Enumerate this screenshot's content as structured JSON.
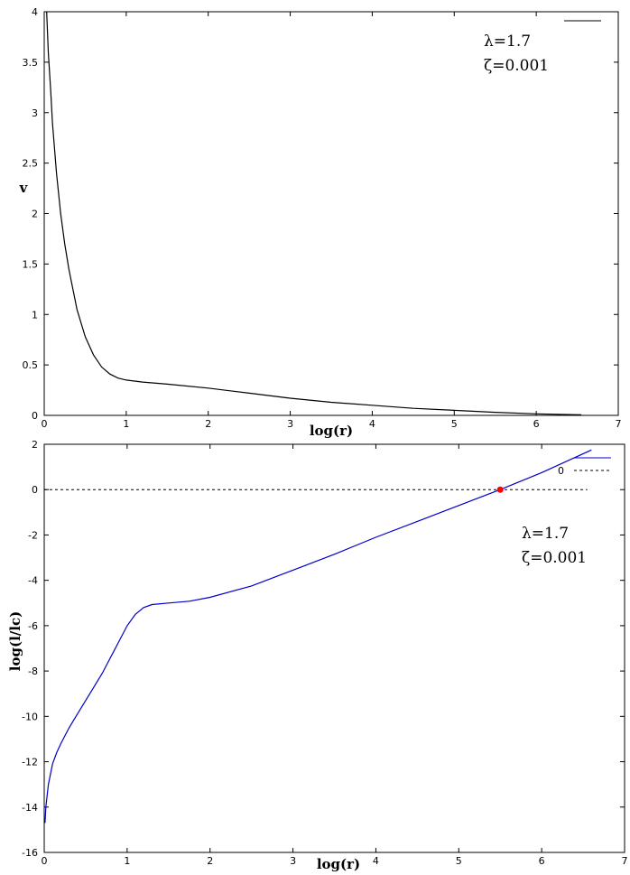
{
  "chart_data": [
    {
      "type": "line",
      "xlabel": "log(r)",
      "ylabel": "v",
      "xlim": [
        0,
        7
      ],
      "ylim": [
        0,
        4
      ],
      "xticks": [
        "0",
        "1",
        "2",
        "3",
        "4",
        "5",
        "6",
        "7"
      ],
      "yticks": [
        "0",
        "0.5",
        "1",
        "1.5",
        "2",
        "2.5",
        "3",
        "3.5",
        "4"
      ],
      "annotations": [
        "λ=1.7",
        "ζ=0.001"
      ],
      "grid": false,
      "legend_position": "top-right",
      "series": [
        {
          "color": "#000000",
          "x": [
            0.03,
            0.05,
            0.08,
            0.1,
            0.15,
            0.2,
            0.25,
            0.3,
            0.4,
            0.5,
            0.6,
            0.7,
            0.8,
            0.9,
            1.0,
            1.2,
            1.5,
            2.0,
            2.5,
            3.0,
            3.5,
            4.0,
            4.5,
            5.0,
            5.5,
            6.0,
            6.55
          ],
          "y": [
            4.0,
            3.6,
            3.2,
            2.9,
            2.4,
            2.0,
            1.7,
            1.45,
            1.05,
            0.78,
            0.6,
            0.48,
            0.41,
            0.37,
            0.35,
            0.33,
            0.31,
            0.27,
            0.22,
            0.17,
            0.13,
            0.1,
            0.07,
            0.05,
            0.03,
            0.015,
            0.005
          ]
        }
      ]
    },
    {
      "type": "line",
      "xlabel": "log(r)",
      "ylabel": "log(l/lc)",
      "xlim": [
        0,
        7
      ],
      "ylim": [
        -16,
        2
      ],
      "xticks": [
        "0",
        "1",
        "2",
        "3",
        "4",
        "5",
        "6",
        "7"
      ],
      "yticks": [
        "-16",
        "-14",
        "-12",
        "-10",
        "-8",
        "-6",
        "-4",
        "-2",
        "0",
        "2"
      ],
      "annotations": [
        "λ=1.7",
        "ζ=0.001"
      ],
      "grid": false,
      "legend_position": "top-right",
      "legend": [
        "0"
      ],
      "series": [
        {
          "color": "#0000cc",
          "x": [
            0.01,
            0.02,
            0.05,
            0.1,
            0.15,
            0.2,
            0.3,
            0.4,
            0.5,
            0.6,
            0.7,
            0.8,
            0.9,
            1.0,
            1.1,
            1.2,
            1.3,
            1.5,
            1.75,
            2.0,
            2.5,
            3.0,
            3.5,
            4.0,
            4.5,
            5.0,
            5.5,
            6.0,
            6.6
          ],
          "y": [
            -14.7,
            -14.0,
            -13.0,
            -12.1,
            -11.6,
            -11.2,
            -10.5,
            -9.9,
            -9.3,
            -8.7,
            -8.1,
            -7.4,
            -6.7,
            -6.0,
            -5.5,
            -5.2,
            -5.07,
            -5.0,
            -4.92,
            -4.75,
            -4.25,
            -3.55,
            -2.85,
            -2.1,
            -1.4,
            -0.7,
            0.0,
            0.75,
            1.75
          ]
        },
        {
          "name": "0",
          "style": "dashed",
          "color": "#000000",
          "x": [
            0,
            6.55
          ],
          "y": [
            0,
            0
          ]
        }
      ],
      "marker": {
        "x": 5.5,
        "y": 0.0,
        "color": "#ff0000"
      }
    }
  ]
}
